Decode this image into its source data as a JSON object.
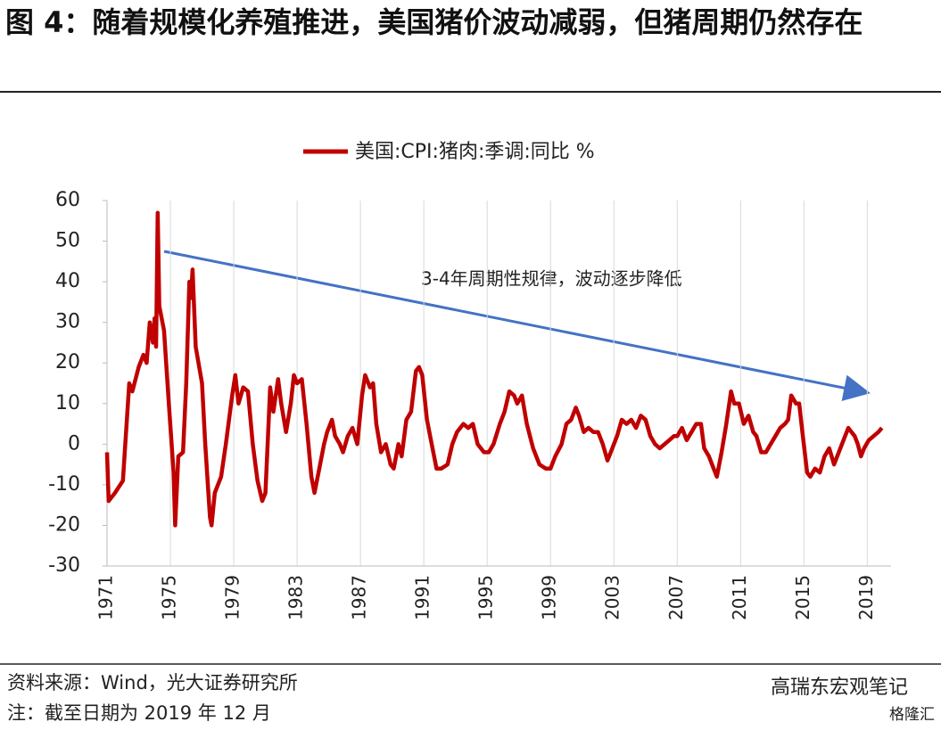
{
  "chart_data": {
    "type": "line",
    "title": "图 4：随着规模化养殖推进，美国猪价波动减弱，但猪周期仍然存在",
    "annotation": "3-4年周期性规律，波动逐步降低",
    "source": "资料来源：Wind，光大证券研究所",
    "note": "注：截至日期为 2019 年 12 月",
    "xlim": [
      1971,
      2020.5
    ],
    "xticks": [
      1971,
      1975,
      1979,
      1983,
      1987,
      1991,
      1995,
      1999,
      2003,
      2007,
      2011,
      2015,
      2019
    ],
    "ylim": [
      -30,
      60
    ],
    "yticks": [
      -30,
      -20,
      -10,
      0,
      10,
      20,
      30,
      40,
      50,
      60
    ],
    "grid": true,
    "legend": "top",
    "x": [
      1971.0,
      1971.1,
      1971.5,
      1972.0,
      1972.4,
      1972.6,
      1973.0,
      1973.3,
      1973.5,
      1973.7,
      1973.9,
      1974.0,
      1974.1,
      1974.2,
      1974.3,
      1974.6,
      1974.9,
      1975.2,
      1975.3,
      1975.5,
      1975.8,
      1976.0,
      1976.2,
      1976.3,
      1976.4,
      1976.6,
      1977.0,
      1977.2,
      1977.5,
      1977.6,
      1977.8,
      1978.2,
      1978.5,
      1978.9,
      1979.1,
      1979.3,
      1979.6,
      1979.9,
      1980.2,
      1980.5,
      1980.8,
      1981.0,
      1981.3,
      1981.5,
      1981.8,
      1982.0,
      1982.3,
      1982.6,
      1982.8,
      1983.0,
      1983.3,
      1983.6,
      1983.9,
      1984.1,
      1984.4,
      1984.7,
      1984.9,
      1985.2,
      1985.4,
      1985.7,
      1985.9,
      1986.2,
      1986.5,
      1986.8,
      1987.1,
      1987.3,
      1987.6,
      1987.8,
      1988.0,
      1988.3,
      1988.6,
      1988.9,
      1989.1,
      1989.4,
      1989.6,
      1989.9,
      1990.2,
      1990.5,
      1990.7,
      1990.9,
      1991.2,
      1991.5,
      1991.8,
      1992.1,
      1992.5,
      1992.8,
      1993.1,
      1993.5,
      1993.8,
      1994.1,
      1994.4,
      1994.8,
      1995.1,
      1995.4,
      1995.8,
      1996.1,
      1996.4,
      1996.7,
      1996.9,
      1997.2,
      1997.5,
      1997.9,
      1998.3,
      1998.7,
      1999.0,
      1999.3,
      1999.7,
      2000.0,
      2000.3,
      2000.6,
      2000.8,
      2001.1,
      2001.4,
      2001.7,
      2002.0,
      2002.3,
      2002.6,
      2002.9,
      2003.2,
      2003.5,
      2003.8,
      2004.1,
      2004.4,
      2004.7,
      2005.0,
      2005.3,
      2005.6,
      2005.9,
      2006.2,
      2006.5,
      2006.8,
      2007.0,
      2007.3,
      2007.6,
      2007.9,
      2008.2,
      2008.5,
      2008.7,
      2009.0,
      2009.3,
      2009.5,
      2009.8,
      2010.1,
      2010.4,
      2010.6,
      2010.9,
      2011.2,
      2011.5,
      2011.8,
      2012.0,
      2012.3,
      2012.6,
      2012.9,
      2013.2,
      2013.5,
      2013.8,
      2014.0,
      2014.2,
      2014.5,
      2014.7,
      2014.9,
      2015.2,
      2015.4,
      2015.7,
      2016.0,
      2016.3,
      2016.6,
      2016.9,
      2017.2,
      2017.5,
      2017.8,
      2018.0,
      2018.2,
      2018.4,
      2018.6,
      2018.8,
      2019.1,
      2019.4,
      2019.7,
      2019.92
    ],
    "series": [
      {
        "name": "美国:CPI:猪肉:季调:同比 %",
        "color": "#c00000",
        "values": [
          -2,
          -14,
          -12,
          -9,
          15,
          13,
          19,
          22,
          20,
          30,
          25,
          31,
          24,
          57,
          34,
          28,
          10,
          -7,
          -20,
          -3,
          -2,
          15,
          40,
          36,
          43,
          24,
          15,
          0,
          -18,
          -20,
          -12,
          -8,
          0,
          12,
          17,
          10,
          14,
          13,
          0,
          -9,
          -14,
          -12,
          14,
          8,
          16,
          10,
          3,
          10,
          17,
          15,
          16,
          5,
          -8,
          -12,
          -6,
          0,
          3,
          6,
          2,
          0,
          -2,
          2,
          4,
          0,
          12,
          17,
          14,
          15,
          5,
          -2,
          0,
          -5,
          -6,
          0,
          -3,
          6,
          8,
          18,
          19,
          17,
          6,
          0,
          -6,
          -6,
          -5,
          0,
          3,
          5,
          4,
          5,
          0,
          -2,
          -2,
          0,
          5,
          8,
          13,
          12,
          10,
          12,
          5,
          -1,
          -5,
          -6,
          -6,
          -3,
          0,
          5,
          6,
          9,
          7,
          3,
          4,
          3,
          3,
          0,
          -4,
          -1,
          2,
          6,
          5,
          6,
          4,
          7,
          6,
          2,
          0,
          -1,
          0,
          1,
          2,
          2,
          4,
          1,
          3,
          5,
          5,
          -1,
          -3,
          -6,
          -8,
          -2,
          5,
          13,
          10,
          10,
          5,
          7,
          3,
          2,
          -2,
          -2,
          0,
          2,
          4,
          5,
          6,
          12,
          10,
          10,
          3,
          -7,
          -8,
          -6,
          -7,
          -3,
          -1,
          -5,
          -2,
          1,
          4,
          3,
          2,
          0,
          -3,
          -1,
          1,
          2,
          3,
          4
        ]
      }
    ]
  },
  "watermark": {
    "account": "高瑞东宏观笔记",
    "brand": "格隆汇"
  }
}
